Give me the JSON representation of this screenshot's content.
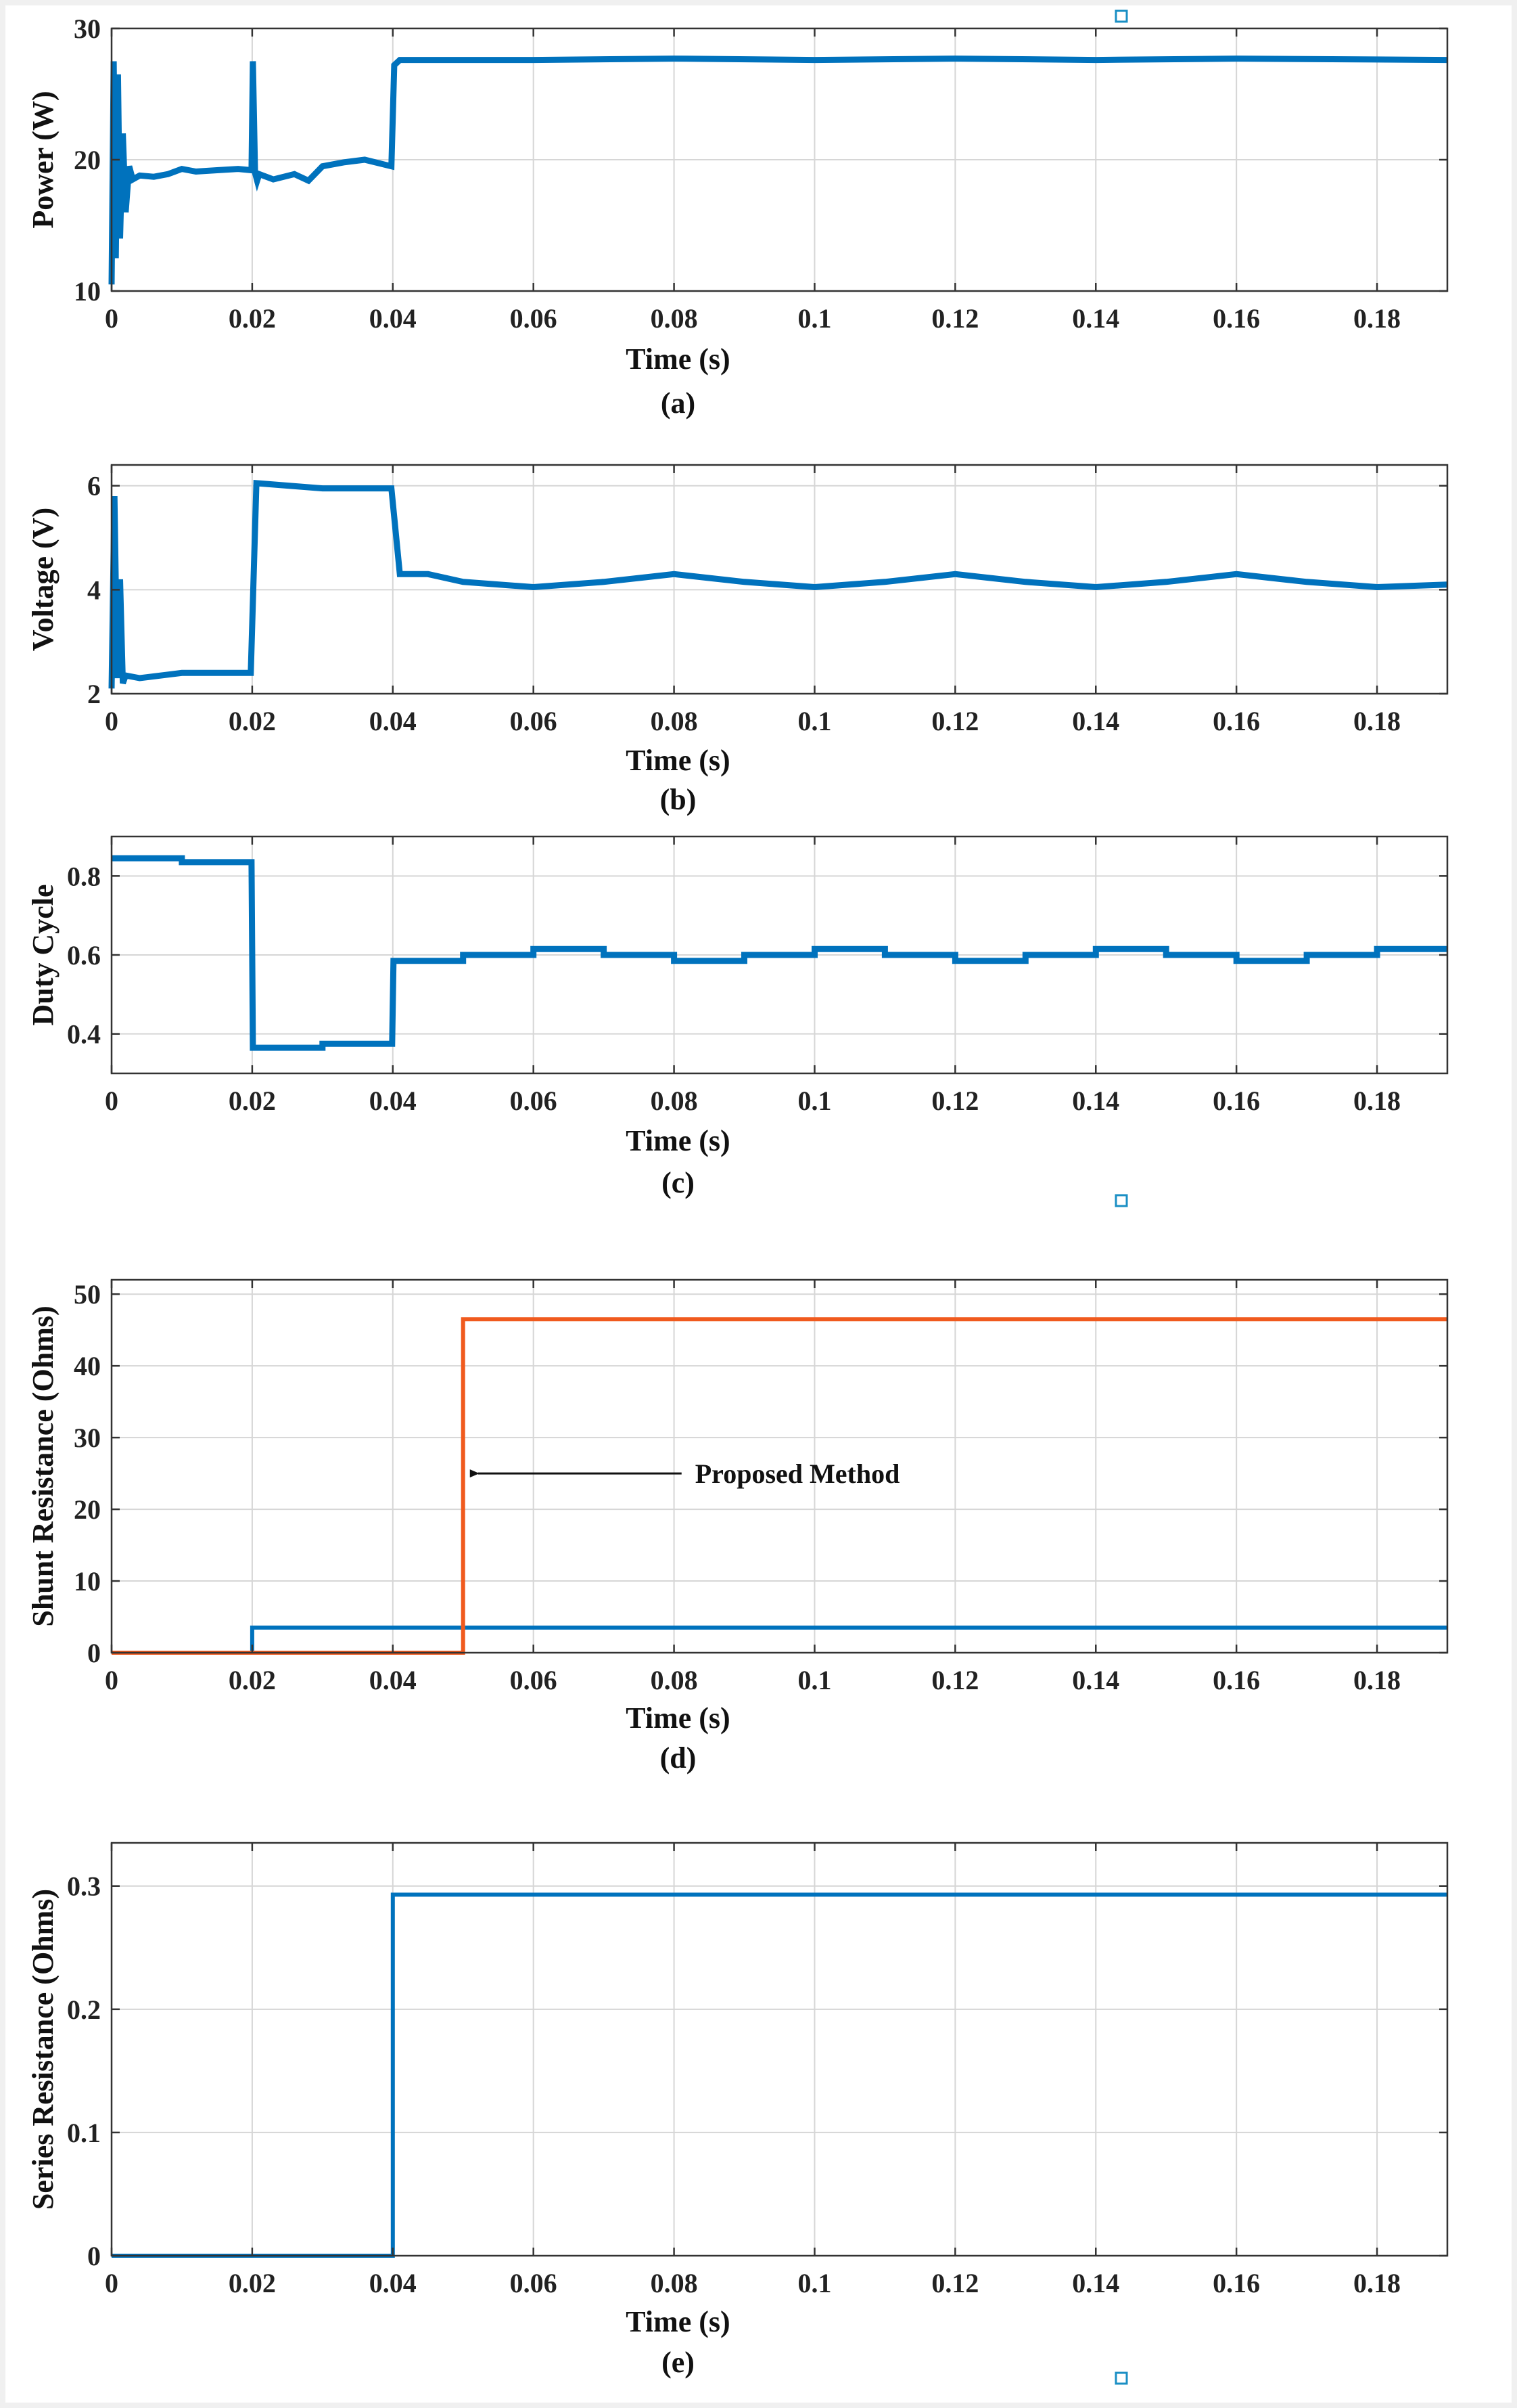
{
  "colors": {
    "series_blue": "#0072BD",
    "series_orange": "#F05A1E",
    "grid": "#d6d6d6",
    "axis": "#333333",
    "figure_bg": "#f0f0f0"
  },
  "chart_data": [
    {
      "type": "line",
      "caption": "(a)",
      "xlabel": "Time (s)",
      "ylabel": "Power (W)",
      "xlim": [
        0,
        0.19
      ],
      "ylim": [
        10,
        30
      ],
      "xticks": [
        0,
        0.02,
        0.04,
        0.06,
        0.08,
        0.1,
        0.12,
        0.14,
        0.16,
        0.18
      ],
      "xticklabels": [
        "0",
        "0.02",
        "0.04",
        "0.06",
        "0.08",
        "0.1",
        "0.12",
        "0.14",
        "0.16",
        "0.18"
      ],
      "yticks": [
        10,
        20,
        30
      ],
      "yticklabels": [
        "10",
        "20",
        "30"
      ],
      "grid": true,
      "series": [
        {
          "name": "Power",
          "color": "#0072BD",
          "x": [
            0,
            0.0003,
            0.0006,
            0.0009,
            0.0012,
            0.0016,
            0.002,
            0.0025,
            0.003,
            0.004,
            0.006,
            0.008,
            0.01,
            0.012,
            0.015,
            0.018,
            0.0199,
            0.0201,
            0.0204,
            0.0207,
            0.021,
            0.023,
            0.026,
            0.028,
            0.03,
            0.033,
            0.036,
            0.0398,
            0.0402,
            0.041,
            0.06,
            0.08,
            0.1,
            0.12,
            0.14,
            0.16,
            0.19
          ],
          "y": [
            10.5,
            27.5,
            12.5,
            26.5,
            14,
            22,
            16,
            19.5,
            18.5,
            18.8,
            18.7,
            18.9,
            19.3,
            19.1,
            19.2,
            19.3,
            19.2,
            27.5,
            19,
            18.4,
            18.9,
            18.5,
            18.9,
            18.4,
            19.5,
            19.8,
            20,
            19.5,
            27.2,
            27.6,
            27.6,
            27.7,
            27.6,
            27.7,
            27.6,
            27.7,
            27.6
          ]
        }
      ]
    },
    {
      "type": "line",
      "caption": "(b)",
      "xlabel": "Time (s)",
      "ylabel": "Voltage (V)",
      "xlim": [
        0,
        0.19
      ],
      "ylim": [
        2,
        6.4
      ],
      "xticks": [
        0,
        0.02,
        0.04,
        0.06,
        0.08,
        0.1,
        0.12,
        0.14,
        0.16,
        0.18
      ],
      "xticklabels": [
        "0",
        "0.02",
        "0.04",
        "0.06",
        "0.08",
        "0.1",
        "0.12",
        "0.14",
        "0.16",
        "0.18"
      ],
      "yticks": [
        2,
        4,
        6
      ],
      "yticklabels": [
        "2",
        "4",
        "6"
      ],
      "grid": true,
      "series": [
        {
          "name": "Voltage",
          "color": "#0072BD",
          "x": [
            0,
            0.0004,
            0.0008,
            0.0012,
            0.0016,
            0.002,
            0.004,
            0.01,
            0.0198,
            0.0206,
            0.03,
            0.0398,
            0.041,
            0.045,
            0.05,
            0.06,
            0.07,
            0.08,
            0.09,
            0.1,
            0.11,
            0.12,
            0.13,
            0.14,
            0.15,
            0.16,
            0.17,
            0.18,
            0.19
          ],
          "y": [
            2.1,
            5.8,
            2.3,
            4.2,
            2.2,
            2.35,
            2.3,
            2.4,
            2.4,
            6.05,
            5.95,
            5.95,
            4.3,
            4.3,
            4.15,
            4.05,
            4.15,
            4.3,
            4.15,
            4.05,
            4.15,
            4.3,
            4.15,
            4.05,
            4.15,
            4.3,
            4.15,
            4.05,
            4.1
          ]
        }
      ]
    },
    {
      "type": "line",
      "caption": "(c)",
      "xlabel": "Time (s)",
      "ylabel": "Duty Cycle",
      "xlim": [
        0,
        0.19
      ],
      "ylim": [
        0.3,
        0.9
      ],
      "xticks": [
        0,
        0.02,
        0.04,
        0.06,
        0.08,
        0.1,
        0.12,
        0.14,
        0.16,
        0.18
      ],
      "xticklabels": [
        "0",
        "0.02",
        "0.04",
        "0.06",
        "0.08",
        "0.1",
        "0.12",
        "0.14",
        "0.16",
        "0.18"
      ],
      "yticks": [
        0.4,
        0.6,
        0.8
      ],
      "yticklabels": [
        "0.4",
        "0.6",
        "0.8"
      ],
      "grid": true,
      "series": [
        {
          "name": "Duty Cycle",
          "color": "#0072BD",
          "x": [
            0,
            0.01,
            0.01,
            0.0199,
            0.0201,
            0.03,
            0.03,
            0.0399,
            0.0401,
            0.05,
            0.05,
            0.06,
            0.06,
            0.07,
            0.07,
            0.08,
            0.08,
            0.09,
            0.09,
            0.1,
            0.1,
            0.11,
            0.11,
            0.12,
            0.12,
            0.13,
            0.13,
            0.14,
            0.14,
            0.15,
            0.15,
            0.16,
            0.16,
            0.17,
            0.17,
            0.18,
            0.18,
            0.19
          ],
          "y": [
            0.845,
            0.845,
            0.835,
            0.835,
            0.365,
            0.365,
            0.375,
            0.375,
            0.585,
            0.585,
            0.6,
            0.6,
            0.615,
            0.615,
            0.6,
            0.6,
            0.585,
            0.585,
            0.6,
            0.6,
            0.615,
            0.615,
            0.6,
            0.6,
            0.585,
            0.585,
            0.6,
            0.6,
            0.615,
            0.615,
            0.6,
            0.6,
            0.585,
            0.585,
            0.6,
            0.6,
            0.615,
            0.615
          ]
        }
      ]
    },
    {
      "type": "line",
      "caption": "(d)",
      "xlabel": "Time (s)",
      "ylabel": "Shunt Resistance (Ohms)",
      "xlim": [
        0,
        0.19
      ],
      "ylim": [
        0,
        52
      ],
      "xticks": [
        0,
        0.02,
        0.04,
        0.06,
        0.08,
        0.1,
        0.12,
        0.14,
        0.16,
        0.18
      ],
      "xticklabels": [
        "0",
        "0.02",
        "0.04",
        "0.06",
        "0.08",
        "0.1",
        "0.12",
        "0.14",
        "0.16",
        "0.18"
      ],
      "yticks": [
        0,
        10,
        20,
        30,
        40,
        50
      ],
      "yticklabels": [
        "0",
        "10",
        "20",
        "30",
        "40",
        "50"
      ],
      "grid": true,
      "annotation": {
        "text": "Proposed Method",
        "arrow_to": [
          0.05,
          25
        ],
        "text_at": [
          0.083,
          25
        ]
      },
      "series": [
        {
          "name": "Shunt Resistance",
          "color": "#0072BD",
          "x": [
            0,
            0.02,
            0.02,
            0.19
          ],
          "y": [
            0,
            0,
            3.5,
            3.5
          ]
        },
        {
          "name": "Proposed Method",
          "color": "#F05A1E",
          "x": [
            0,
            0.05,
            0.05,
            0.19
          ],
          "y": [
            0,
            0,
            46.5,
            46.5
          ]
        }
      ]
    },
    {
      "type": "line",
      "caption": "(e)",
      "xlabel": "Time (s)",
      "ylabel": "Series Resistance (Ohms)",
      "xlim": [
        0,
        0.19
      ],
      "ylim": [
        0,
        0.335
      ],
      "xticks": [
        0,
        0.02,
        0.04,
        0.06,
        0.08,
        0.1,
        0.12,
        0.14,
        0.16,
        0.18
      ],
      "xticklabels": [
        "0",
        "0.02",
        "0.04",
        "0.06",
        "0.08",
        "0.1",
        "0.12",
        "0.14",
        "0.16",
        "0.18"
      ],
      "yticks": [
        0,
        0.1,
        0.2,
        0.3
      ],
      "yticklabels": [
        "0",
        "0.1",
        "0.2",
        "0.3"
      ],
      "grid": true,
      "series": [
        {
          "name": "Series Resistance",
          "color": "#0072BD",
          "x": [
            0,
            0.04,
            0.04,
            0.19
          ],
          "y": [
            0,
            0,
            0.293,
            0.293
          ]
        }
      ]
    }
  ]
}
